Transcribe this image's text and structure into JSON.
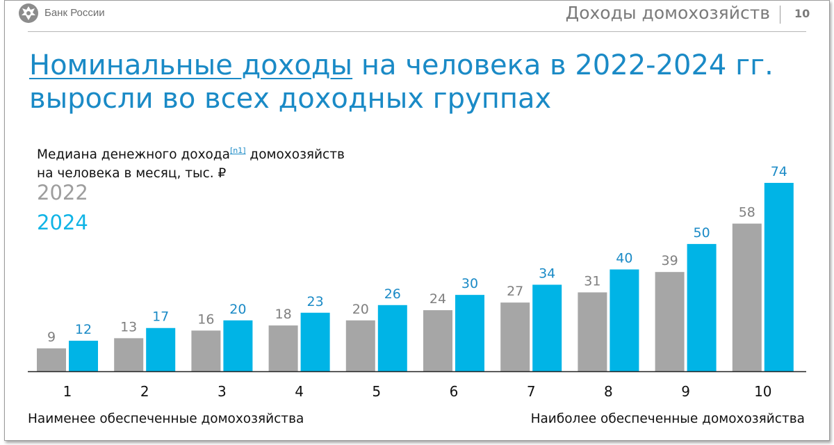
{
  "header": {
    "bank_name": "Банк России",
    "section_title": "Доходы домохозяйств",
    "page_number": "10"
  },
  "headline": {
    "underlined": "Номинальные доходы",
    "rest_line1": " на человека в 2022-2024 гг.",
    "line2": "выросли во всех доходных группах"
  },
  "chart_data": {
    "type": "bar",
    "title": "Медиана денежного дохода домохозяйств на человека в месяц, тыс. ₽",
    "title_line1": "Медиана денежного дохода",
    "footnote_ref": "[n1]",
    "title_line1_after": " домохозяйств",
    "title_line2": "на человека в месяц, тыс. ₽",
    "categories": [
      "1",
      "2",
      "3",
      "4",
      "5",
      "6",
      "7",
      "8",
      "9",
      "10"
    ],
    "series": [
      {
        "name": "2022",
        "values": [
          9,
          13,
          16,
          18,
          20,
          24,
          27,
          31,
          39,
          58
        ],
        "color": "#a6a6a6",
        "label_color": "#7f7f7f"
      },
      {
        "name": "2024",
        "values": [
          12,
          17,
          20,
          23,
          26,
          30,
          34,
          40,
          50,
          74
        ],
        "color": "#00b4e6",
        "label_color": "#1a8ac6"
      }
    ],
    "ylim": [
      0,
      74
    ],
    "grid": false,
    "legend_placement": "top-left",
    "xlabel_left": "Наименее обеспеченные домохозяйства",
    "xlabel_right": "Наиболее обеспеченные домохозяйства"
  }
}
